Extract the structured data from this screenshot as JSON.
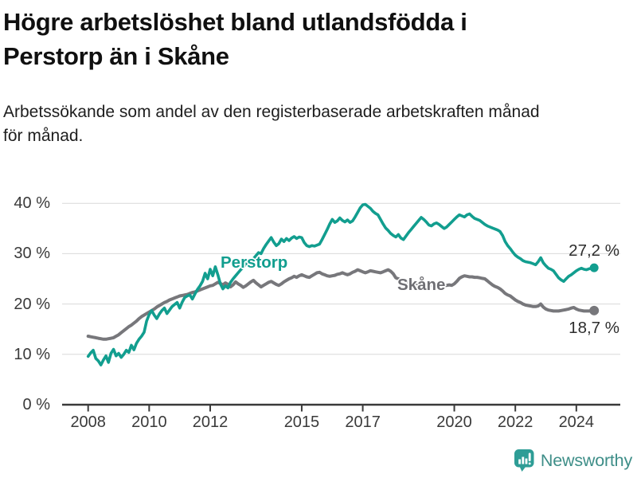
{
  "header": {
    "title_lines": [
      "Högre arbetslöshet bland utlandsfödda i",
      "Perstorp än i Skåne"
    ],
    "subtitle_lines": [
      "Arbetssökande som andel av den registerbaserade arbetskraften månad",
      "för månad."
    ]
  },
  "chart_data": {
    "type": "line",
    "title": "Högre arbetslöshet bland utlandsfödda i Perstorp än i Skåne",
    "subtitle": "Arbetssökande som andel av den registerbaserade arbetskraften månad för månad.",
    "unit": "%",
    "grid": true,
    "legend_position": "inline-labels",
    "xlim": [
      2007.5,
      2025.0
    ],
    "ylim": [
      0,
      40
    ],
    "yticks": [
      {
        "v": 0,
        "label": "0 %"
      },
      {
        "v": 10,
        "label": "10 %"
      },
      {
        "v": 20,
        "label": "20 %"
      },
      {
        "v": 30,
        "label": "30 %"
      },
      {
        "v": 40,
        "label": "40 %"
      }
    ],
    "xticks": [
      {
        "v": 2008,
        "label": "2008"
      },
      {
        "v": 2010,
        "label": "2010"
      },
      {
        "v": 2012,
        "label": "2012"
      },
      {
        "v": 2015,
        "label": "2015"
      },
      {
        "v": 2017,
        "label": "2017"
      },
      {
        "v": 2020,
        "label": "2020"
      },
      {
        "v": 2022,
        "label": "2022"
      },
      {
        "v": 2024,
        "label": "2024"
      }
    ],
    "colors": {
      "grid": "#d9d9d9",
      "axis": "#3a3a3a",
      "perstorp": "#129e8f",
      "skane": "#77777b"
    },
    "series": [
      {
        "id": "perstorp",
        "name": "Perstorp",
        "color": "#129e8f",
        "width": 3.6,
        "dot_r": 5.5,
        "end_label": "27,2 %",
        "end_value": 27.2,
        "start": 2008.0,
        "points_per_year": 12,
        "values": [
          9.6,
          10.3,
          10.8,
          9.2,
          8.7,
          7.9,
          8.9,
          9.7,
          8.4,
          10.2,
          11.0,
          9.7,
          10.2,
          9.4,
          10.0,
          10.8,
          10.4,
          11.8,
          10.9,
          12.2,
          13.0,
          13.6,
          14.4,
          16.6,
          17.9,
          18.7,
          17.8,
          17.1,
          18.0,
          18.7,
          19.2,
          18.1,
          18.8,
          19.5,
          19.9,
          20.3,
          19.2,
          20.4,
          21.3,
          21.6,
          21.8,
          21.0,
          22.0,
          22.9,
          23.6,
          24.5,
          26.1,
          25.0,
          26.9,
          25.6,
          27.4,
          25.8,
          24.0,
          23.0,
          23.6,
          23.2,
          24.3,
          25.0,
          25.6,
          26.2,
          26.8,
          27.3,
          27.9,
          28.4,
          28.0,
          29.0,
          29.6,
          30.2,
          30.0,
          31.0,
          31.8,
          32.5,
          33.2,
          32.3,
          31.6,
          32.0,
          32.9,
          32.4,
          33.0,
          32.6,
          33.1,
          33.4,
          33.0,
          33.3,
          33.2,
          32.2,
          31.6,
          31.4,
          31.6,
          31.5,
          31.7,
          31.9,
          32.8,
          33.8,
          34.8,
          35.9,
          36.8,
          36.2,
          36.5,
          37.1,
          36.6,
          36.3,
          36.7,
          36.2,
          36.5,
          37.3,
          38.2,
          39.1,
          39.7,
          39.8,
          39.4,
          39.0,
          38.4,
          38.0,
          37.7,
          36.8,
          35.9,
          35.1,
          34.6,
          34.0,
          33.6,
          33.3,
          33.8,
          33.1,
          32.8,
          33.5,
          34.2,
          34.8,
          35.4,
          36.0,
          36.6,
          37.2,
          36.8,
          36.3,
          35.7,
          35.5,
          35.9,
          36.1,
          35.8,
          35.4,
          35.0,
          35.3,
          35.8,
          36.3,
          36.8,
          37.3,
          37.7,
          37.5,
          37.3,
          37.7,
          37.9,
          37.4,
          37.0,
          36.8,
          36.6,
          36.2,
          35.8,
          35.5,
          35.3,
          35.1,
          34.9,
          34.7,
          34.4,
          33.6,
          32.4,
          31.6,
          31.0,
          30.3,
          29.7,
          29.3,
          29.0,
          28.6,
          28.4,
          28.3,
          28.2,
          28.0,
          27.8,
          28.4,
          29.2,
          28.2,
          27.6,
          27.1,
          26.9,
          26.6,
          25.9,
          25.2,
          24.8,
          24.5,
          25.0,
          25.5,
          25.8,
          26.2,
          26.6,
          26.9,
          27.1,
          26.9,
          26.8,
          27.0,
          27.1,
          27.2
        ]
      },
      {
        "id": "skane",
        "name": "Skåne",
        "color": "#77777b",
        "width": 4,
        "dot_r": 6,
        "end_label": "18,7 %",
        "end_value": 18.7,
        "start": 2008.0,
        "points_per_year": 12,
        "values": [
          13.6,
          13.5,
          13.4,
          13.3,
          13.2,
          13.1,
          13.0,
          13.0,
          13.1,
          13.2,
          13.3,
          13.6,
          13.9,
          14.3,
          14.7,
          15.1,
          15.5,
          15.8,
          16.2,
          16.6,
          17.1,
          17.5,
          17.8,
          18.1,
          18.4,
          18.7,
          19.0,
          19.4,
          19.7,
          20.0,
          20.3,
          20.5,
          20.8,
          21.0,
          21.2,
          21.4,
          21.6,
          21.7,
          21.8,
          21.9,
          22.1,
          22.3,
          22.4,
          22.6,
          22.8,
          23.0,
          23.2,
          23.4,
          23.6,
          23.7,
          24.0,
          24.3,
          24.1,
          23.8,
          24.2,
          23.9,
          23.4,
          23.8,
          24.4,
          24.0,
          23.7,
          23.3,
          23.6,
          24.0,
          24.4,
          24.7,
          24.2,
          23.8,
          23.4,
          23.7,
          24.0,
          24.3,
          24.5,
          24.2,
          23.9,
          23.7,
          24.0,
          24.4,
          24.7,
          25.0,
          25.2,
          25.5,
          25.3,
          25.6,
          25.8,
          25.6,
          25.4,
          25.3,
          25.6,
          25.9,
          26.2,
          26.3,
          26.0,
          25.8,
          25.6,
          25.5,
          25.6,
          25.7,
          25.9,
          26.0,
          26.2,
          26.0,
          25.8,
          26.0,
          26.3,
          26.5,
          26.8,
          26.6,
          26.4,
          26.2,
          26.4,
          26.6,
          26.5,
          26.4,
          26.3,
          26.2,
          26.4,
          26.6,
          26.8,
          26.5,
          26.0,
          25.2,
          25.0,
          24.8,
          24.6,
          24.5,
          24.4,
          24.3,
          24.2,
          24.1,
          24.0,
          23.9,
          23.9,
          23.8,
          23.8,
          23.7,
          23.7,
          23.6,
          23.6,
          23.6,
          23.7,
          23.7,
          23.8,
          23.7,
          24.0,
          24.5,
          25.1,
          25.4,
          25.6,
          25.5,
          25.4,
          25.4,
          25.3,
          25.3,
          25.2,
          25.1,
          25.0,
          24.6,
          24.2,
          23.8,
          23.5,
          23.3,
          23.0,
          22.6,
          22.1,
          21.8,
          21.6,
          21.2,
          20.8,
          20.5,
          20.3,
          20.0,
          19.8,
          19.7,
          19.6,
          19.5,
          19.5,
          19.6,
          20.0,
          19.4,
          19.0,
          18.8,
          18.7,
          18.6,
          18.6,
          18.6,
          18.7,
          18.8,
          18.9,
          19.0,
          19.2,
          19.3,
          19.0,
          18.8,
          18.7,
          18.6,
          18.6,
          18.6,
          18.7,
          18.7
        ]
      }
    ]
  },
  "footer": {
    "brand": "Newsworthy",
    "logo_icon": "bar-chart-speech-bubble-icon",
    "brand_color": "#3e8e88",
    "icon_color": "#2e9d96"
  }
}
